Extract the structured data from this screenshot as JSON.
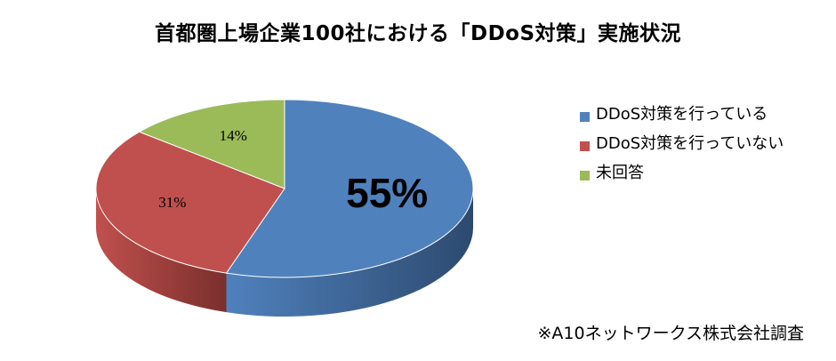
{
  "chart_data": {
    "type": "pie",
    "title": "首都圏上場企業100社における「DDoS対策」実施状況",
    "slices": [
      {
        "label": "DDoS対策を行っている",
        "value": 55,
        "display": "55%",
        "color": "#4f81bd",
        "side_color": "#2d4a70"
      },
      {
        "label": "DDoS対策を行っていない",
        "value": 31,
        "display": "31%",
        "color": "#c0504d",
        "side_color": "#7a2f2d"
      },
      {
        "label": "未回答",
        "value": 14,
        "display": "14%",
        "color": "#9bbb59",
        "side_color": "#5e7536"
      }
    ],
    "legend_position": "right",
    "is_3d": true
  },
  "footnote": "※A10ネットワークス株式会社調査"
}
